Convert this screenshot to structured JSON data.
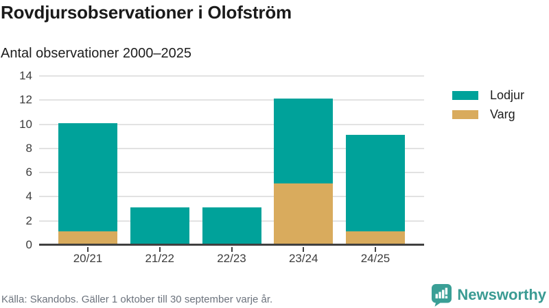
{
  "header": {
    "title": "Rovdjursobservationer i Olofström",
    "subtitle": "Antal observationer 2000–2025"
  },
  "footer": {
    "source_note": "Källa: Skandobs. Gäller 1 oktober till 30 september varje år."
  },
  "branding": {
    "name": "Newsworthy",
    "logo_icon": "bar-chart-speech-bubble-icon",
    "color": "#3A9F96",
    "text_color": "#3A9B93"
  },
  "colors": {
    "lodjur": "#00A29A",
    "varg": "#D9AB5D",
    "gridline": "#E2E2E2",
    "axis_line": "#404040",
    "axis_text": "#3C3C3C",
    "title_text": "#1A1A1A",
    "note_text": "#6C737D"
  },
  "chart_data": {
    "type": "bar",
    "stacked": true,
    "title": "Rovdjursobservationer i Olofström",
    "subtitle": "Antal observationer 2000–2025",
    "categories": [
      "20/21",
      "21/22",
      "22/23",
      "23/24",
      "24/25"
    ],
    "series": [
      {
        "name": "Lodjur",
        "color": "#00A29A",
        "values": [
          9,
          3,
          3,
          7,
          8
        ]
      },
      {
        "name": "Varg",
        "color": "#D9AB5D",
        "values": [
          1,
          0,
          0,
          5,
          1
        ]
      }
    ],
    "stack_order_bottom_up": [
      "Varg",
      "Lodjur"
    ],
    "totals": [
      10,
      3,
      3,
      12,
      9
    ],
    "xlabel": "",
    "ylabel": "",
    "ylim": [
      0,
      14
    ],
    "yticks": [
      0,
      2,
      4,
      6,
      8,
      10,
      12,
      14
    ],
    "grid": true,
    "legend_position": "right"
  }
}
